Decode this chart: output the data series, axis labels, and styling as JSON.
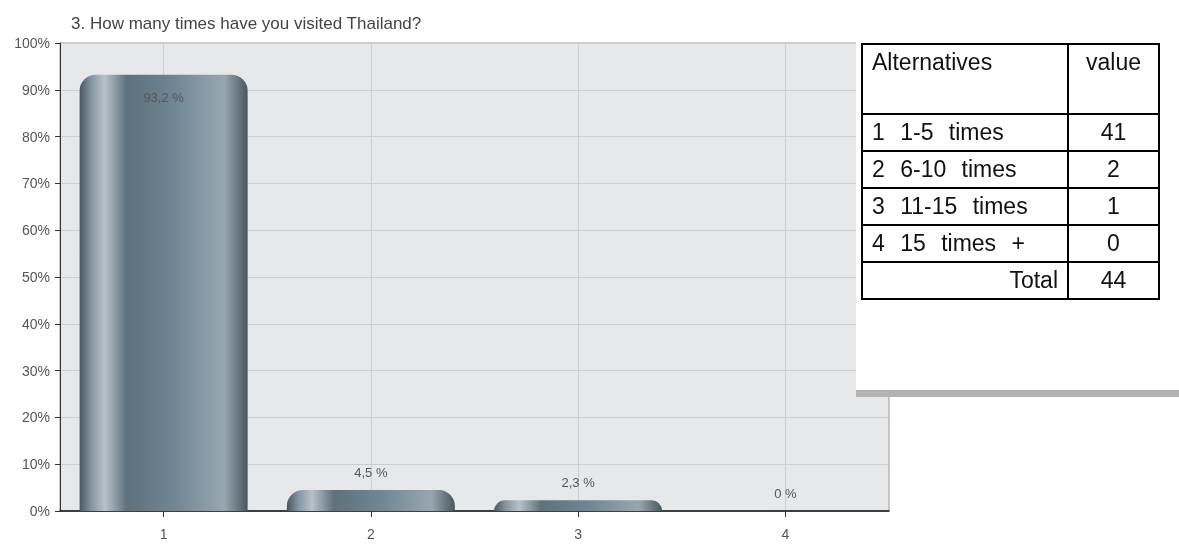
{
  "chart_data": [
    {
      "type": "bar",
      "title": "3. How many times have you visited Thailand?",
      "categories": [
        "1",
        "2",
        "3",
        "4"
      ],
      "values": [
        93.2,
        4.5,
        2.3,
        0
      ],
      "color": "#6f8593",
      "value_labels": [
        "93,2 %",
        "4,5 %",
        "2,3 %",
        "0 %"
      ],
      "ylim": [
        0,
        100
      ],
      "yticks": [
        {
          "value": 0,
          "label": "0%"
        },
        {
          "value": 10,
          "label": "10%"
        },
        {
          "value": 20,
          "label": "20%"
        },
        {
          "value": 30,
          "label": "30%"
        },
        {
          "value": 40,
          "label": "40%"
        },
        {
          "value": 50,
          "label": "50%"
        },
        {
          "value": 60,
          "label": "60%"
        },
        {
          "value": 70,
          "label": "70%"
        },
        {
          "value": 80,
          "label": "80%"
        },
        {
          "value": 90,
          "label": "90%"
        },
        {
          "value": 100,
          "label": "100%"
        }
      ],
      "grid": true
    },
    {
      "type": "other",
      "xlabel": "Alternatives",
      "ylabel": "value",
      "categories": [
        "1 1-5 times",
        "2 6-10 times",
        "3 11-15 times",
        "4 15 times +"
      ],
      "values": [
        41,
        2,
        1,
        0
      ],
      "data_labels": true,
      "annotations": [
        "Total"
      ],
      "totals": [
        "44"
      ]
    }
  ]
}
